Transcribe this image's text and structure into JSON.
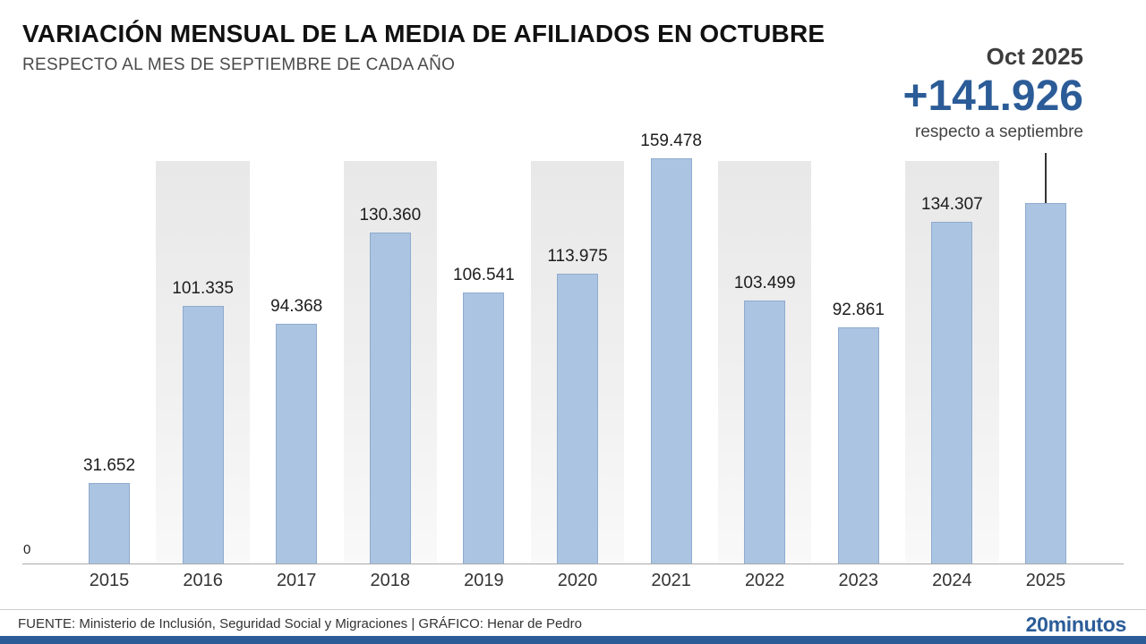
{
  "header": {
    "title": "VARIACIÓN MENSUAL DE LA MEDIA DE AFILIADOS EN OCTUBRE",
    "subtitle": "RESPECTO AL MES DE SEPTIEMBRE DE CADA AÑO"
  },
  "highlight": {
    "period": "Oct 2025",
    "value": "+141.926",
    "caption": "respecto a septiembre"
  },
  "chart_data": {
    "type": "bar",
    "title": "Variación mensual de la media de afiliados en octubre",
    "categories": [
      "2015",
      "2016",
      "2017",
      "2018",
      "2019",
      "2020",
      "2021",
      "2022",
      "2023",
      "2024",
      "2025"
    ],
    "values": [
      31652,
      101335,
      94368,
      130360,
      106541,
      113975,
      159478,
      103499,
      92861,
      134307,
      141926
    ],
    "value_labels": [
      "31.652",
      "101.335",
      "94.368",
      "130.360",
      "106.541",
      "113.975",
      "159.478",
      "103.499",
      "92.861",
      "134.307",
      ""
    ],
    "xlabel": "",
    "ylabel": "",
    "ylim": [
      0,
      165000
    ],
    "zero_label": "0",
    "grid": "off",
    "legend": "none",
    "bar_color": "#aac4e2",
    "bar_border_color": "#8fabce",
    "accent_color": "#2b5c97"
  },
  "footer": {
    "source": "FUENTE: Ministerio de Inclusión, Seguridad Social y Migraciones  |  GRÁFICO: Henar de Pedro",
    "brand": "20minutos"
  }
}
